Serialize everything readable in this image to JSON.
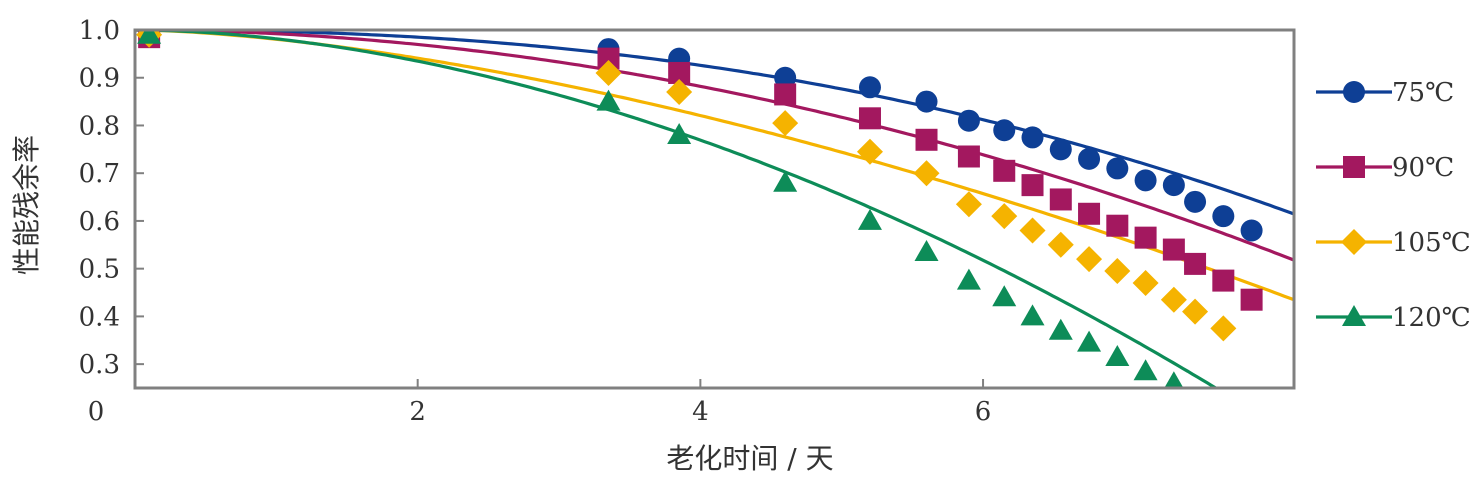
{
  "chart_data": {
    "type": "line",
    "title": "",
    "xlabel": "老化时间 / 天",
    "ylabel": "性能残余率",
    "xlim": [
      0,
      8.2
    ],
    "ylim": [
      0.25,
      1.0
    ],
    "x_ticks": [
      2,
      4,
      6
    ],
    "x_tick_labels": [
      "2",
      "4",
      "6"
    ],
    "x_origin_label": "0",
    "y_ticks": [
      0.3,
      0.4,
      0.5,
      0.6,
      0.7,
      0.8,
      0.9,
      1.0
    ],
    "y_tick_labels": [
      "0.3",
      "0.4",
      "0.5",
      "0.6",
      "0.7",
      "0.8",
      "0.9",
      "1.0"
    ],
    "grid": false,
    "legend_position": "right",
    "series": [
      {
        "name": "75℃",
        "color": "#0e3f95",
        "marker": "circle",
        "curve": {
          "a": 0.00305,
          "n": 2.3
        },
        "points": [
          [
            0.1,
            0.99
          ],
          [
            3.35,
            0.96
          ],
          [
            3.85,
            0.94
          ],
          [
            4.6,
            0.9
          ],
          [
            5.2,
            0.88
          ],
          [
            5.6,
            0.85
          ],
          [
            5.9,
            0.81
          ],
          [
            6.15,
            0.79
          ],
          [
            6.35,
            0.775
          ],
          [
            6.55,
            0.75
          ],
          [
            6.75,
            0.73
          ],
          [
            6.95,
            0.71
          ],
          [
            7.15,
            0.685
          ],
          [
            7.35,
            0.675
          ],
          [
            7.5,
            0.64
          ],
          [
            7.7,
            0.61
          ],
          [
            7.9,
            0.58
          ]
        ]
      },
      {
        "name": "90℃",
        "color": "#a3185f",
        "marker": "square",
        "curve": {
          "a": 0.0078,
          "n": 1.96
        },
        "points": [
          [
            0.1,
            0.985
          ],
          [
            3.35,
            0.94
          ],
          [
            3.85,
            0.91
          ],
          [
            4.6,
            0.865
          ],
          [
            5.2,
            0.815
          ],
          [
            5.6,
            0.77
          ],
          [
            5.9,
            0.735
          ],
          [
            6.15,
            0.705
          ],
          [
            6.35,
            0.675
          ],
          [
            6.55,
            0.645
          ],
          [
            6.75,
            0.615
          ],
          [
            6.95,
            0.59
          ],
          [
            7.15,
            0.565
          ],
          [
            7.35,
            0.54
          ],
          [
            7.5,
            0.51
          ],
          [
            7.7,
            0.475
          ],
          [
            7.9,
            0.435
          ]
        ]
      },
      {
        "name": "105℃",
        "color": "#f5b300",
        "marker": "diamond",
        "curve": {
          "a": 0.0195,
          "n": 1.6
        },
        "points": [
          [
            0.1,
            0.99
          ],
          [
            3.35,
            0.91
          ],
          [
            3.85,
            0.87
          ],
          [
            4.6,
            0.805
          ],
          [
            5.2,
            0.745
          ],
          [
            5.6,
            0.7
          ],
          [
            5.9,
            0.635
          ],
          [
            6.15,
            0.61
          ],
          [
            6.35,
            0.58
          ],
          [
            6.55,
            0.55
          ],
          [
            6.75,
            0.52
          ],
          [
            6.95,
            0.495
          ],
          [
            7.15,
            0.47
          ],
          [
            7.35,
            0.435
          ],
          [
            7.5,
            0.41
          ],
          [
            7.7,
            0.375
          ]
        ]
      },
      {
        "name": "120℃",
        "color": "#0d8c58",
        "marker": "triangle",
        "curve": {
          "a": 0.0185,
          "n": 1.82
        },
        "points": [
          [
            0.1,
            0.99
          ],
          [
            3.35,
            0.85
          ],
          [
            3.85,
            0.78
          ],
          [
            4.6,
            0.68
          ],
          [
            5.2,
            0.6
          ],
          [
            5.6,
            0.535
          ],
          [
            5.9,
            0.475
          ],
          [
            6.15,
            0.44
          ],
          [
            6.35,
            0.4
          ],
          [
            6.55,
            0.37
          ],
          [
            6.75,
            0.345
          ],
          [
            6.95,
            0.315
          ],
          [
            7.15,
            0.285
          ],
          [
            7.35,
            0.26
          ]
        ]
      }
    ]
  }
}
